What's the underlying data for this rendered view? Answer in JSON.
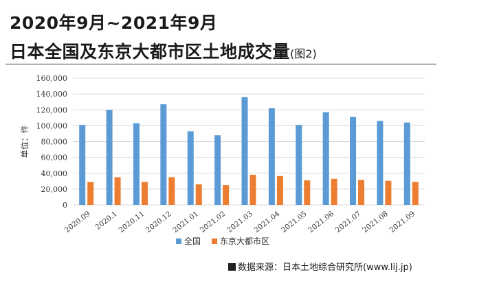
{
  "header": {
    "title_line1": "2020年9月~2021年9月",
    "title_line2": "日本全国及东京大都市区土地成交量",
    "title_note": "(图2)"
  },
  "chart_data": {
    "type": "bar",
    "categories": [
      "2020.09",
      "2020.1",
      "2020.11",
      "2020.12",
      "2021.01",
      "2021.02",
      "2021.03",
      "2021.04",
      "2021.05",
      "2021.06",
      "2021.07",
      "2021.08",
      "2021.09"
    ],
    "series": [
      {
        "name": "全国",
        "color": "#5b9bd5",
        "values": [
          101000,
          120000,
          103000,
          127000,
          93000,
          88000,
          136000,
          122000,
          101000,
          117000,
          111000,
          106000,
          104000
        ]
      },
      {
        "name": "东京大都市区",
        "color": "#ed7d31",
        "values": [
          29000,
          35000,
          29000,
          35000,
          26000,
          25000,
          38000,
          36500,
          31000,
          33000,
          31500,
          30500,
          29000
        ]
      }
    ],
    "ylabel": "单位：件",
    "ylim": [
      0,
      160000
    ],
    "yticks": [
      "0",
      "20,000",
      "40,000",
      "60,000",
      "80,000",
      "100,000",
      "120,000",
      "140,000",
      "160,000"
    ],
    "grid": true,
    "legend_position": "bottom"
  },
  "source": {
    "text": "数据来源：日本土地综合研究所(www.lij.jp)"
  }
}
